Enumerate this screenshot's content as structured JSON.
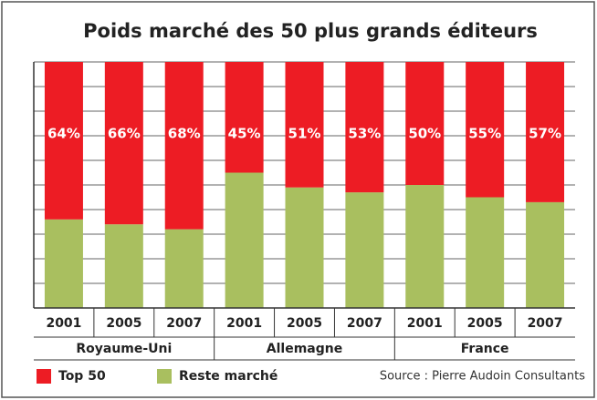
{
  "chart_data": {
    "type": "bar",
    "stacked": true,
    "title": "Poids marché des 50 plus grands éditeurs",
    "categories": [
      "2001",
      "2005",
      "2007",
      "2001",
      "2005",
      "2007",
      "2001",
      "2005",
      "2007"
    ],
    "groups": [
      "Royaume-Uni",
      "Allemagne",
      "France"
    ],
    "series": [
      {
        "name": "Reste marché",
        "color": "#a9bf5f",
        "values": [
          36,
          34,
          32,
          55,
          49,
          47,
          50,
          45,
          43
        ]
      },
      {
        "name": "Top 50",
        "color": "#ed1c24",
        "values": [
          64,
          66,
          68,
          45,
          51,
          53,
          50,
          55,
          57
        ],
        "value_labels": [
          "64%",
          "66%",
          "68%",
          "45%",
          "51%",
          "53%",
          "50%",
          "55%",
          "57%"
        ]
      }
    ],
    "ylim": [
      0,
      100
    ],
    "yticks": [
      0,
      10,
      20,
      30,
      40,
      50,
      60,
      70,
      80,
      90,
      100
    ],
    "grid": true,
    "source": "Source : Pierre Audoin Consultants"
  }
}
